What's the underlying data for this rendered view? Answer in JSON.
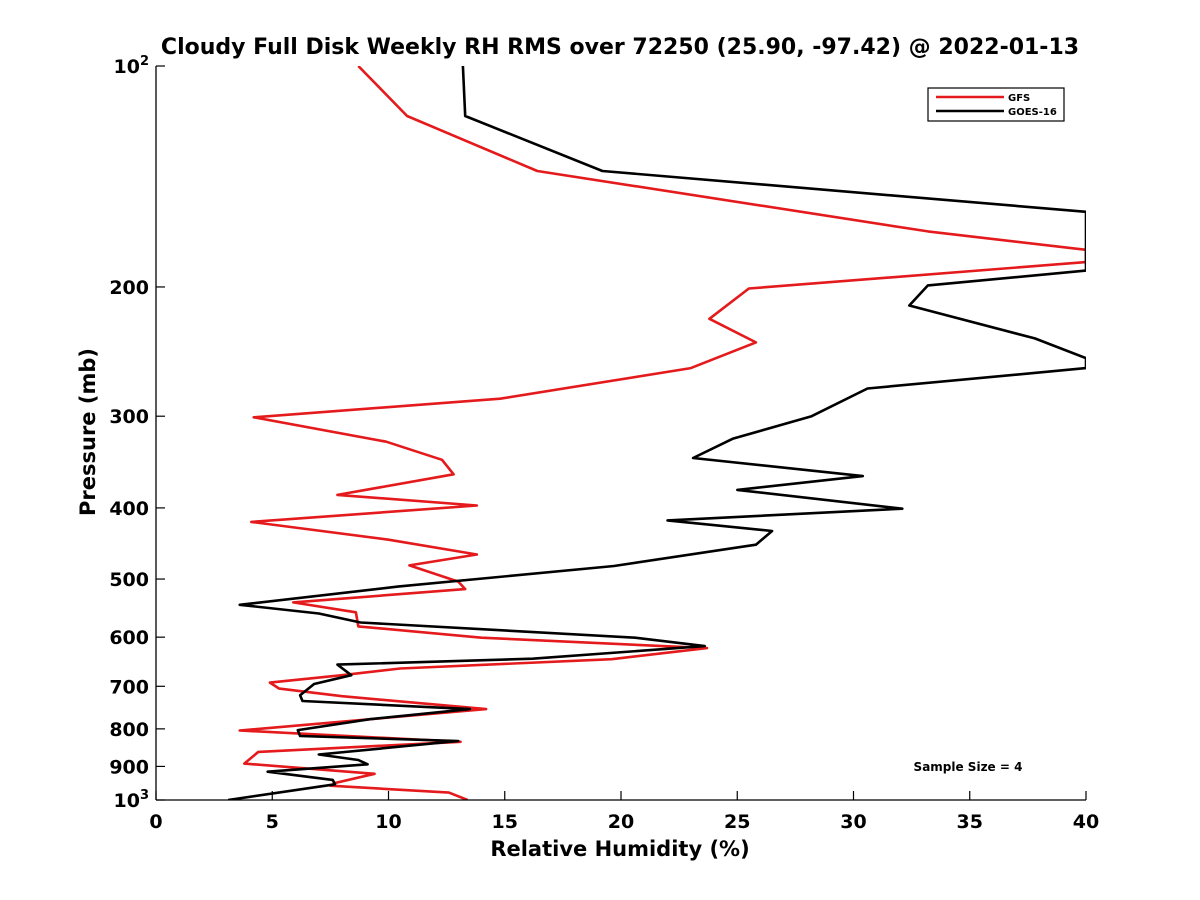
{
  "chart_data": {
    "type": "line",
    "title": "Cloudy Full Disk Weekly RH RMS over 72250 (25.90, -97.42) @ 2022-01-13",
    "xlabel": "Relative Humidity (%)",
    "ylabel": "Pressure (mb)",
    "xlim": [
      0,
      40
    ],
    "ylim": [
      1000,
      100
    ],
    "yscale": "log",
    "y_reversed": true,
    "x_ticks": [
      0,
      5,
      10,
      15,
      20,
      25,
      30,
      35,
      40
    ],
    "x_tick_labels": [
      "0",
      "5",
      "10",
      "15",
      "20",
      "25",
      "30",
      "35",
      "40"
    ],
    "y_ticks": [
      {
        "value": 100,
        "base": "10",
        "exp": "2"
      },
      {
        "value": 200,
        "base": "200",
        "exp": ""
      },
      {
        "value": 300,
        "base": "300",
        "exp": ""
      },
      {
        "value": 400,
        "base": "400",
        "exp": ""
      },
      {
        "value": 500,
        "base": "500",
        "exp": ""
      },
      {
        "value": 600,
        "base": "600",
        "exp": ""
      },
      {
        "value": 700,
        "base": "700",
        "exp": ""
      },
      {
        "value": 800,
        "base": "800",
        "exp": ""
      },
      {
        "value": 900,
        "base": "900",
        "exp": ""
      },
      {
        "value": 1000,
        "base": "10",
        "exp": "3"
      }
    ],
    "grid": false,
    "legend_position": "top-right",
    "series": [
      {
        "name": "GFS",
        "color": "#e41a1c",
        "x": [
          8.7,
          10.8,
          16.4,
          33.2,
          40.0,
          40.0,
          25.5,
          23.8,
          25.8,
          23.0,
          14.8,
          4.2,
          9.9,
          12.3,
          12.8,
          7.8,
          13.8,
          4.1,
          10.0,
          13.8,
          10.9,
          13.0,
          13.3,
          5.9,
          8.6,
          8.7,
          14.0,
          23.7,
          19.6,
          10.5,
          8.0,
          4.9,
          5.3,
          8.0,
          14.2,
          3.6,
          13.1,
          4.4,
          3.8,
          9.4,
          7.7,
          7.5,
          12.6,
          13.4
        ],
        "y": [
          100,
          117,
          139,
          168,
          178,
          185,
          201,
          221,
          238,
          258,
          284,
          301,
          325,
          344,
          360,
          384,
          397,
          418,
          442,
          463,
          479,
          504,
          516,
          538,
          555,
          580,
          601,
          621,
          643,
          662,
          676,
          692,
          705,
          722,
          752,
          804,
          833,
          860,
          892,
          921,
          948,
          956,
          977,
          1000
        ]
      },
      {
        "name": "GOES-16",
        "color": "#000000",
        "x": [
          13.2,
          13.3,
          19.2,
          40.0,
          40.0,
          33.2,
          32.4,
          37.8,
          40.0,
          40.0,
          30.6,
          28.2,
          24.8,
          23.1,
          30.4,
          25.0,
          32.1,
          22.0,
          26.5,
          25.8,
          19.7,
          10.4,
          3.6,
          7.0,
          8.8,
          20.6,
          23.6,
          16.2,
          7.8,
          8.4,
          6.8,
          6.2,
          6.3,
          13.5,
          9.2,
          6.1,
          6.2,
          13.0,
          7.0,
          8.7,
          9.1,
          4.8,
          7.6,
          7.7,
          3.1
        ],
        "y": [
          100,
          117,
          139,
          158,
          190,
          199,
          212,
          235,
          250,
          258,
          275,
          300,
          322,
          342,
          362,
          378,
          401,
          416,
          430,
          449,
          480,
          512,
          542,
          557,
          573,
          601,
          617,
          642,
          654,
          676,
          695,
          720,
          733,
          752,
          776,
          803,
          818,
          831,
          867,
          882,
          894,
          915,
          939,
          952,
          1000
        ]
      }
    ],
    "annotations": [
      "Sample Size = 4"
    ]
  }
}
